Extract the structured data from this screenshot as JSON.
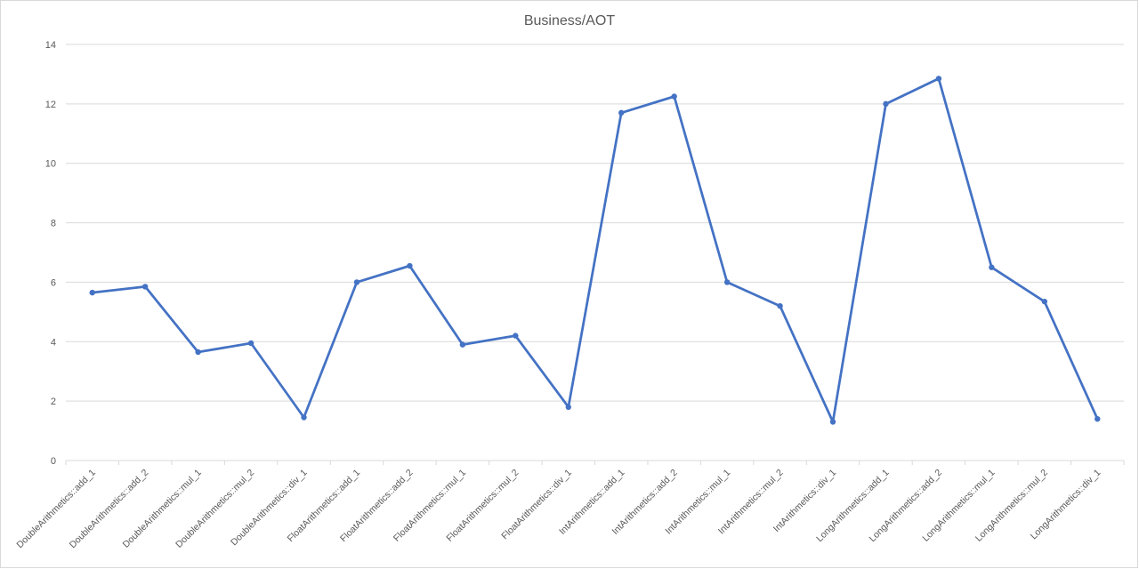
{
  "chart_data": {
    "type": "line",
    "title": "Business/AOT",
    "xlabel": "",
    "ylabel": "",
    "ylim": [
      0,
      14
    ],
    "yticks": [
      "0",
      "2",
      "4",
      "6",
      "8",
      "10",
      "12",
      "14"
    ],
    "grid": true,
    "legend": "none",
    "categories": [
      "DoubleArithmetics::add_1",
      "DoubleArithmetics::add_2",
      "DoubleArithmetics::mul_1",
      "DoubleArithmetics::mul_2",
      "DoubleArithmetics::div_1",
      "FloatArithmetics::add_1",
      "FloatArithmetics::add_2",
      "FloatArithmetics::mul_1",
      "FloatArithmetics::mul_2",
      "FloatArithmetics::div_1",
      "IntArithmetics::add_1",
      "IntArithmetics::add_2",
      "IntArithmetics::mul_1",
      "IntArithmetics::mul_2",
      "IntArithmetics::div_1",
      "LongArithmetics::add_1",
      "LongArithmetics::add_2",
      "LongArithmetics::mul_1",
      "LongArithmetics::mul_2",
      "LongArithmetics::div_1"
    ],
    "series": [
      {
        "values": [
          5.65,
          5.85,
          3.65,
          3.95,
          1.45,
          6.0,
          6.55,
          3.9,
          4.2,
          1.8,
          11.7,
          12.25,
          6.0,
          5.2,
          1.3,
          12.0,
          12.85,
          6.5,
          5.35,
          1.4
        ],
        "color": "#4472c4"
      }
    ]
  }
}
